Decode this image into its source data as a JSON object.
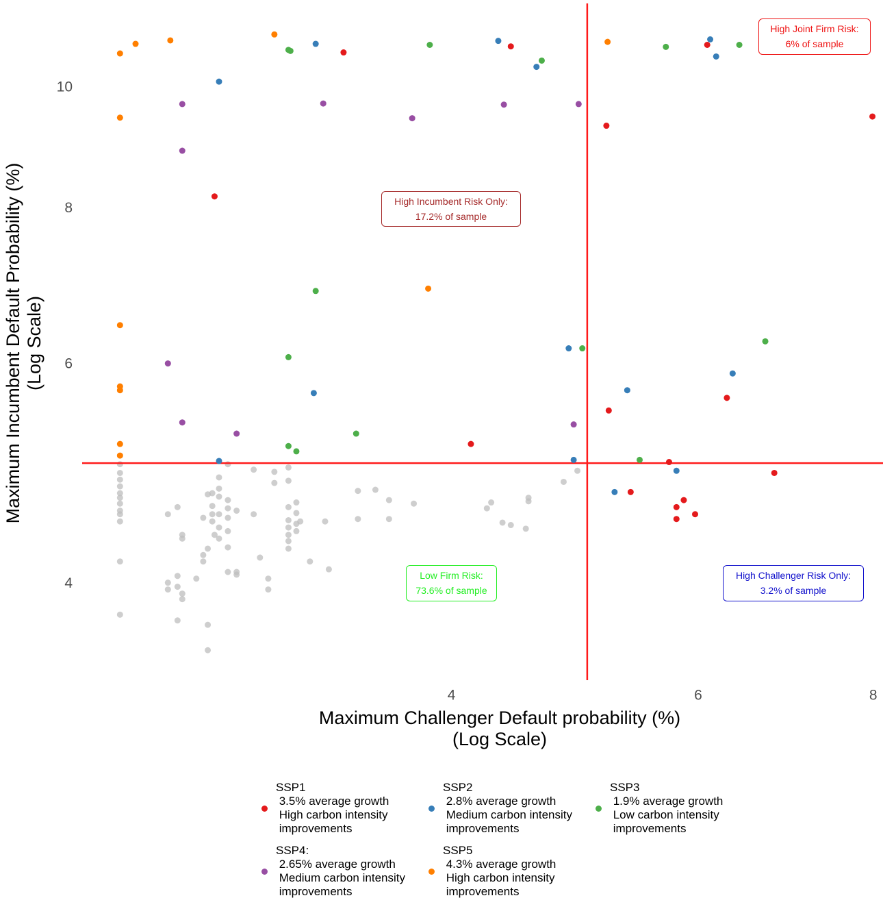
{
  "chart_data": {
    "type": "scatter",
    "x_label": "Maximum Challenger Default probability (%)\n(Log Scale)",
    "y_label": "Maximum Incumbent Default Probability (%)\n(Log Scale)",
    "xscale": "log",
    "yscale": "log",
    "xlim": [
      2.18,
      8.13
    ],
    "ylim": [
      3.32,
      11.68
    ],
    "xticks": [
      4,
      6,
      8
    ],
    "yticks": [
      4,
      6,
      8,
      10
    ],
    "grid": false,
    "reference_lines": {
      "x": 5,
      "y": 5,
      "color": "#ff1a1a"
    },
    "series": [
      {
        "name": "SSP1\n 3.5% average growth\n High carbon intensity\n improvements",
        "color": "#e41a1c",
        "x": [
          3.35,
          4.41,
          6.09,
          2.71,
          5.16,
          7.99,
          5.18,
          6.29,
          4.13,
          5.72,
          6.8,
          5.37,
          5.86,
          5.79,
          5.97,
          5.79
        ],
        "y": [
          10.67,
          10.79,
          10.82,
          8.18,
          9.32,
          9.48,
          5.51,
          5.64,
          5.18,
          5.01,
          4.91,
          4.74,
          4.67,
          4.61,
          4.55,
          4.51
        ]
      },
      {
        "name": "SSP2\n 2.8% average growth\n Medium carbon intensity\n improvements",
        "color": "#377eb8",
        "x": [
          3.2,
          4.32,
          6.12,
          6.18,
          4.6,
          2.73,
          4.85,
          6.35,
          5.34,
          3.19,
          2.73,
          4.89,
          5.79,
          5.23
        ],
        "y": [
          10.84,
          10.9,
          10.93,
          10.59,
          10.39,
          10.11,
          6.18,
          5.9,
          5.72,
          5.69,
          5.02,
          5.03,
          4.93,
          4.74
        ]
      },
      {
        "name": "SSP3\n 1.9% average growth\n Low carbon intensity\n improvements",
        "color": "#4daf4a",
        "x": [
          3.06,
          3.07,
          3.86,
          5.69,
          6.42,
          4.64,
          3.2,
          3.06,
          4.96,
          6.7,
          3.42,
          3.06,
          3.1,
          5.45
        ],
        "y": [
          10.72,
          10.7,
          10.82,
          10.78,
          10.82,
          10.51,
          6.87,
          6.08,
          6.18,
          6.26,
          5.28,
          5.16,
          5.11,
          5.03
        ]
      },
      {
        "name": "SSP4:\n 2.65% average growth\n Medium carbon intensity\n improvements",
        "color": "#984ea3",
        "x": [
          2.57,
          3.24,
          4.36,
          4.93,
          3.75,
          2.57,
          2.51,
          2.57,
          2.81,
          4.89
        ],
        "y": [
          9.7,
          9.71,
          9.69,
          9.7,
          9.45,
          8.9,
          6.01,
          5.39,
          5.28,
          5.37
        ]
      },
      {
        "name": "SSP5\n 4.3% average growth\n High carbon intensity\n improvements",
        "color": "#ff7f00",
        "x": [
          2.32,
          2.38,
          2.52,
          2.99,
          5.17,
          2.32,
          3.85,
          2.32,
          2.32,
          2.32,
          2.32,
          2.32
        ],
        "y": [
          10.65,
          10.84,
          10.91,
          11.03,
          10.88,
          9.46,
          6.9,
          6.45,
          5.76,
          5.72,
          5.18,
          5.07
        ]
      }
    ],
    "unlabeled_points": {
      "color": "#bdbdbd",
      "x": [
        2.32,
        2.32,
        2.32,
        2.32,
        2.32,
        2.32,
        2.32,
        2.32,
        2.32,
        2.32,
        2.32,
        2.32,
        2.51,
        2.55,
        2.57,
        2.57,
        2.55,
        2.51,
        2.51,
        2.55,
        2.57,
        2.57,
        2.55,
        2.63,
        2.66,
        2.66,
        2.68,
        2.66,
        2.7,
        2.7,
        2.68,
        2.73,
        2.73,
        2.7,
        2.73,
        2.73,
        2.71,
        2.73,
        2.7,
        2.77,
        2.77,
        2.77,
        2.77,
        2.77,
        2.77,
        2.81,
        2.81,
        2.68,
        2.68,
        2.77,
        2.73,
        2.81,
        2.89,
        2.89,
        2.92,
        2.96,
        2.96,
        2.99,
        2.99,
        3.06,
        3.06,
        3.06,
        3.06,
        3.06,
        3.06,
        3.06,
        3.06,
        3.1,
        3.1,
        3.1,
        3.1,
        3.12,
        3.17,
        3.25,
        3.27,
        3.43,
        3.43,
        3.53,
        3.61,
        3.61,
        3.76,
        4.24,
        4.27,
        4.35,
        4.41,
        4.52,
        4.54,
        4.54,
        4.81,
        4.92
      ],
      "y": [
        4.99,
        4.91,
        4.85,
        4.79,
        4.73,
        4.69,
        4.64,
        4.58,
        4.55,
        4.49,
        4.17,
        3.78,
        4.55,
        4.61,
        4.38,
        4.35,
        4.06,
        4.01,
        3.96,
        3.98,
        3.93,
        3.89,
        3.74,
        4.04,
        4.22,
        4.17,
        4.27,
        4.52,
        4.55,
        4.73,
        4.72,
        4.77,
        4.7,
        4.62,
        4.55,
        4.44,
        4.38,
        4.35,
        4.49,
        4.67,
        4.6,
        4.52,
        4.41,
        4.28,
        4.09,
        4.09,
        4.07,
        3.71,
        3.54,
        4.99,
        4.87,
        4.58,
        4.94,
        4.55,
        4.2,
        4.04,
        3.96,
        4.82,
        4.92,
        4.96,
        4.84,
        4.61,
        4.5,
        4.44,
        4.38,
        4.33,
        4.27,
        4.65,
        4.56,
        4.47,
        4.41,
        4.49,
        4.17,
        4.49,
        4.11,
        4.75,
        4.51,
        4.76,
        4.67,
        4.51,
        4.64,
        4.6,
        4.65,
        4.48,
        4.46,
        4.43,
        4.69,
        4.66,
        4.83,
        4.93
      ]
    },
    "annotations": [
      {
        "text": "High Joint Firm Risk:\n6% of sample",
        "color": "#ee1111"
      },
      {
        "text": "High Incumbent Risk Only:\n17.2% of sample",
        "color": "#a52a2a"
      },
      {
        "text": "Low Firm Risk:\n73.6% of sample",
        "color": "#22ee22"
      },
      {
        "text": "High Challenger Risk Only:\n3.2% of sample",
        "color": "#1111cc"
      }
    ]
  }
}
